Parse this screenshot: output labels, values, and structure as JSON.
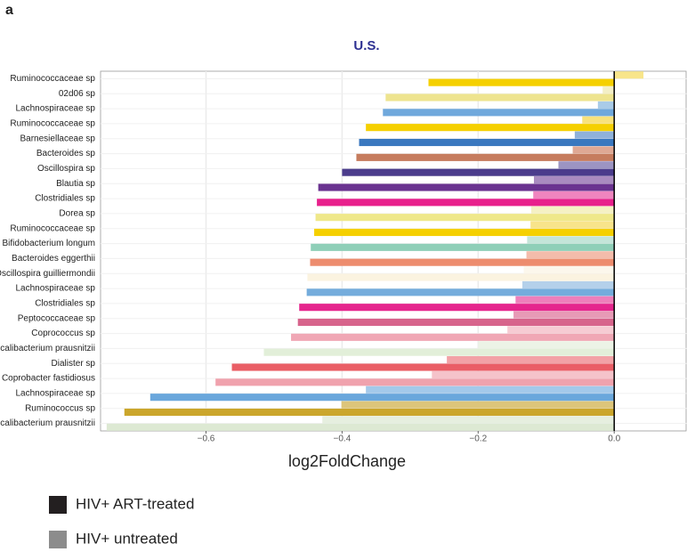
{
  "chart_data": {
    "type": "hbar_grouped",
    "panel_label": "a",
    "title": "U.S.",
    "xlabel": "log2FoldChange",
    "categories": [
      "Ruminococcaceae sp",
      "02d06 sp",
      "Lachnospiraceae sp",
      "Ruminococcaceae sp",
      "Barnesiellaceae sp",
      "Bacteroides sp",
      "Oscillospira sp",
      "Blautia sp",
      "Clostridiales sp",
      "Dorea sp",
      "Ruminococcaceae sp",
      "Bifidobacterium longum",
      "Bacteroides eggerthii",
      "Oscillospira guilliermondii",
      "Lachnospiraceae sp",
      "Clostridiales sp",
      "Peptococcaceae sp",
      "Coprococcus sp",
      "Faecalibacterium prausnitzii",
      "Dialister sp",
      "Coprobacter fastidiosus",
      "Lachnospiraceae sp",
      "Ruminococcus sp",
      "Faecalibacterium prausnitzii"
    ],
    "series": [
      {
        "name": "HIV+ untreated",
        "color": "#8c8c8c",
        "colors": [
          "#f8e58a",
          "#f3efc6",
          "#a9cbe8",
          "#f8e27c",
          "#8fb1da",
          "#dfa894",
          "#9c94c2",
          "#a98bc0",
          "#ef85bf",
          "#f5f1c4",
          "#f8e48a",
          "#c4e5d9",
          "#f4bcab",
          "#fcf7ec",
          "#b4d0ea",
          "#ee7fbb",
          "#e79ab6",
          "#f6cbd3",
          "#ecf3e6",
          "#f2a2a6",
          "#f5c3ca",
          "#a4c9ea",
          "#ddc57a",
          "#e6efdf"
        ],
        "values": [
          0.043,
          -0.017,
          -0.024,
          -0.047,
          -0.058,
          -0.061,
          -0.082,
          -0.118,
          -0.119,
          -0.122,
          -0.123,
          -0.128,
          -0.129,
          -0.133,
          -0.135,
          -0.145,
          -0.148,
          -0.157,
          -0.2,
          -0.246,
          -0.268,
          -0.365,
          -0.401,
          -0.429
        ]
      },
      {
        "name": "HIV+ ART-treated",
        "color": "#231f20",
        "colors": [
          "#f5d000",
          "#eee48f",
          "#6fa8dc",
          "#f5d000",
          "#3a78bf",
          "#c67c5e",
          "#4b3c8c",
          "#6a3390",
          "#e8208c",
          "#efe88a",
          "#f5d000",
          "#8fcfb8",
          "#ed8c6e",
          "#fbf3e0",
          "#74acdc",
          "#e5258d",
          "#d7648c",
          "#f0a7b5",
          "#e2efd9",
          "#ea5e66",
          "#f0a2ad",
          "#6aa7dc",
          "#cba62c",
          "#dde9d3"
        ],
        "values": [
          -0.273,
          -0.336,
          -0.34,
          -0.365,
          -0.375,
          -0.379,
          -0.4,
          -0.435,
          -0.437,
          -0.439,
          -0.441,
          -0.446,
          -0.447,
          -0.451,
          -0.452,
          -0.463,
          -0.465,
          -0.475,
          -0.515,
          -0.562,
          -0.586,
          -0.682,
          -0.72,
          -0.746
        ]
      }
    ],
    "xlim": [
      -0.755,
      0.107
    ],
    "xticks": [
      {
        "value": -0.6,
        "label": "−0.6"
      },
      {
        "value": -0.4,
        "label": "−0.4"
      },
      {
        "value": -0.2,
        "label": "−0.2"
      },
      {
        "value": 0,
        "label": "0.0"
      }
    ],
    "grid": true
  }
}
